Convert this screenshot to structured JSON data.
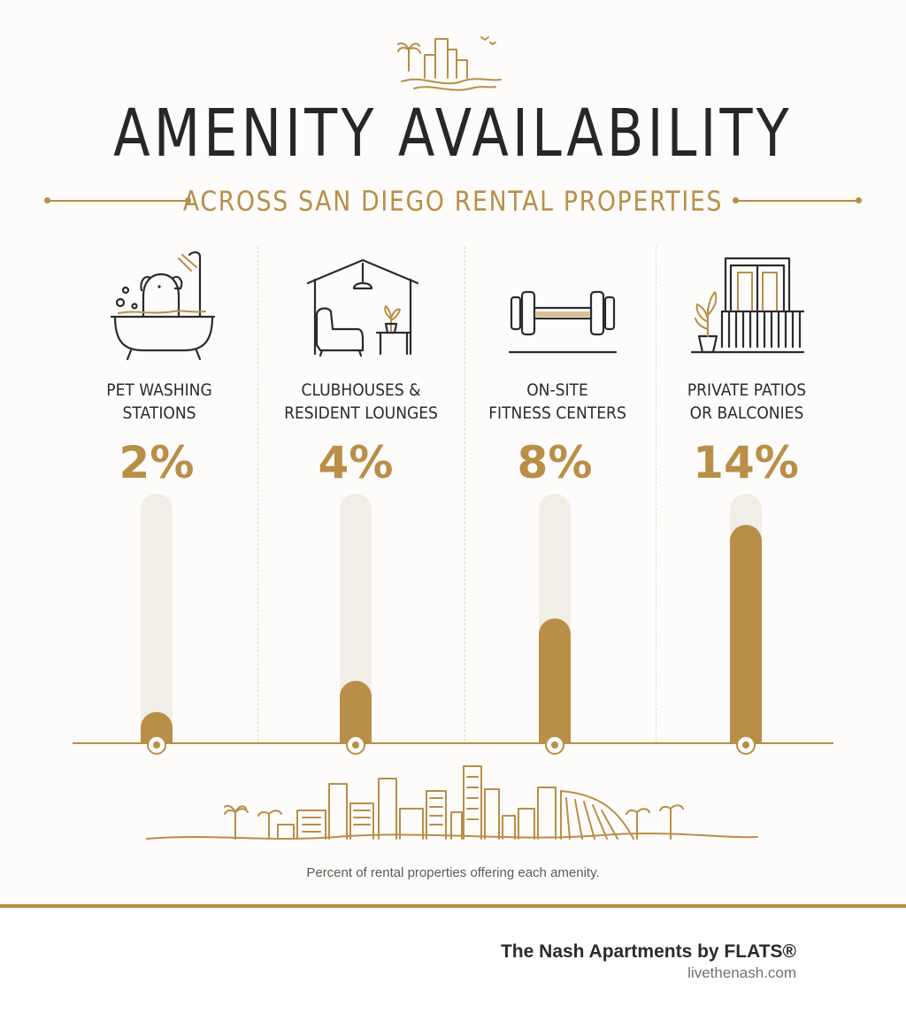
{
  "header": {
    "title": "AMENITY AVAILABILITY",
    "subtitle": "ACROSS SAN DIEGO RENTAL PROPERTIES"
  },
  "columns": [
    {
      "label_line1": "PET WASHING",
      "label_line2": "STATIONS",
      "value_text": "2%",
      "icon": "pet-bath-icon"
    },
    {
      "label_line1": "CLUBHOUSES &",
      "label_line2": "RESIDENT LOUNGES",
      "value_text": "4%",
      "icon": "lounge-icon"
    },
    {
      "label_line1": "ON-SITE",
      "label_line2": "FITNESS CENTERS",
      "value_text": "8%",
      "icon": "dumbbell-icon"
    },
    {
      "label_line1": "PRIVATE PATIOS",
      "label_line2": "OR BALCONIES",
      "value_text": "14%",
      "icon": "balcony-icon"
    }
  ],
  "chart_data": {
    "type": "bar",
    "categories": [
      "PET WASHING STATIONS",
      "CLUBHOUSES & RESIDENT LOUNGES",
      "ON-SITE FITNESS CENTERS",
      "PRIVATE PATIOS OR BALCONIES"
    ],
    "values": [
      2,
      4,
      8,
      14
    ],
    "unit": "%",
    "ylim": [
      0,
      16
    ],
    "grid": false,
    "legend": "none"
  },
  "caption": "Percent of rental properties offering each amenity.",
  "brand": {
    "name": "The Nash Apartments by FLATS®",
    "url": "livethenash.com"
  },
  "colors": {
    "accent": "#b98e48",
    "track": "#f1eee8",
    "text": "#26272b"
  }
}
